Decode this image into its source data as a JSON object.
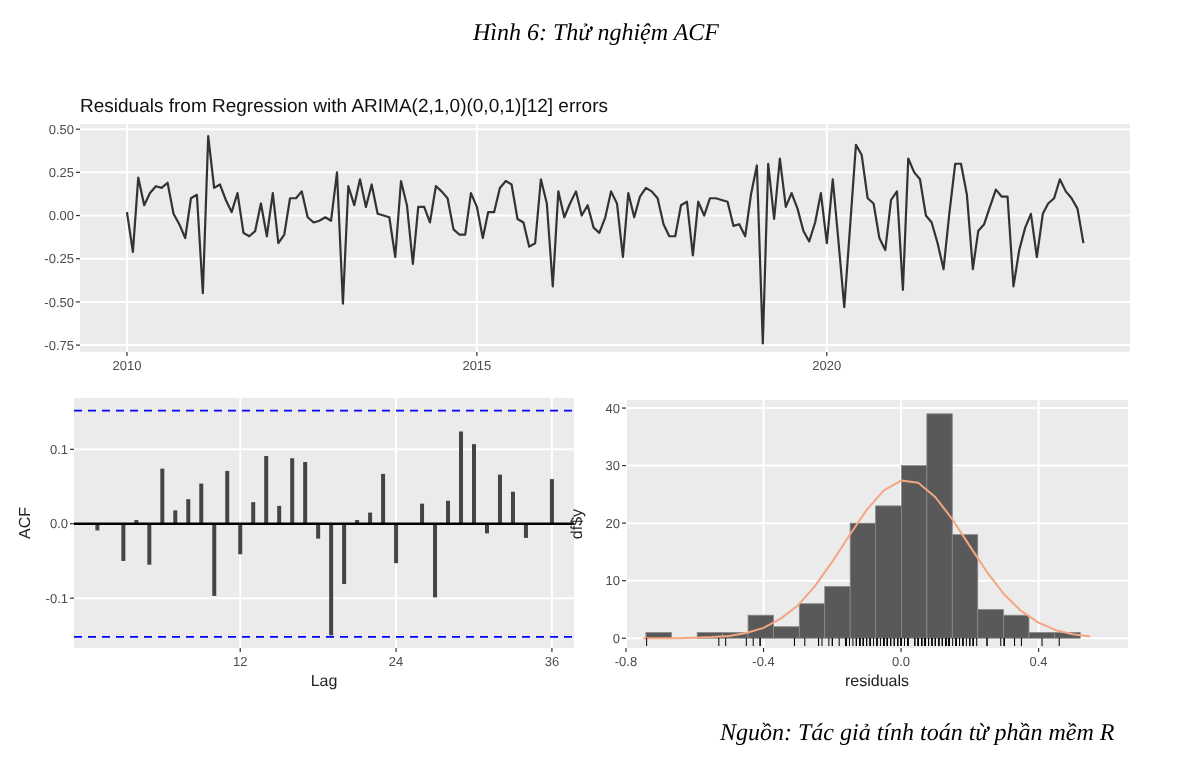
{
  "chart_data": [
    {
      "type": "other",
      "title": "Hình 6: Thử nghiệm ACF",
      "annotations": [
        "Nguồn: Tác giả tính toán từ phần mềm R"
      ]
    },
    {
      "type": "line",
      "title": "Residuals from Regression with ARIMA(2,1,0)(0,0,1)[12] errors",
      "color": "#333333",
      "grid": true,
      "x": [
        "2010-01",
        "2010-02",
        "2010-03",
        "2010-04",
        "2010-05",
        "2010-06",
        "2010-07",
        "2010-08",
        "2010-09",
        "2010-10",
        "2010-11",
        "2010-12",
        "2011-01",
        "2011-02",
        "2011-03",
        "2011-04",
        "2011-05",
        "2011-06",
        "2011-07",
        "2011-08",
        "2011-09",
        "2011-10",
        "2011-11",
        "2011-12",
        "2012-01",
        "2012-02",
        "2012-03",
        "2012-04",
        "2012-05",
        "2012-06",
        "2012-07",
        "2012-08",
        "2012-09",
        "2012-10",
        "2012-11",
        "2012-12",
        "2013-01",
        "2013-02",
        "2013-03",
        "2013-04",
        "2013-05",
        "2013-06",
        "2013-07",
        "2013-08",
        "2013-09",
        "2013-10",
        "2013-11",
        "2013-12",
        "2014-01",
        "2014-02",
        "2014-03",
        "2014-04",
        "2014-05",
        "2014-06",
        "2014-07",
        "2014-08",
        "2014-09",
        "2014-10",
        "2014-11",
        "2014-12",
        "2015-01",
        "2015-02",
        "2015-03",
        "2015-04",
        "2015-05",
        "2015-06",
        "2015-07",
        "2015-08",
        "2015-09",
        "2015-10",
        "2015-11",
        "2015-12",
        "2016-01",
        "2016-02",
        "2016-03",
        "2016-04",
        "2016-05",
        "2016-06",
        "2016-07",
        "2016-08",
        "2016-09",
        "2016-10",
        "2016-11",
        "2016-12",
        "2017-01",
        "2017-02",
        "2017-03",
        "2017-04",
        "2017-05",
        "2017-06",
        "2017-07",
        "2017-08",
        "2017-09",
        "2017-10",
        "2017-11",
        "2017-12",
        "2018-01",
        "2018-02",
        "2018-03",
        "2018-04",
        "2018-05",
        "2018-06",
        "2018-07",
        "2018-08",
        "2018-09",
        "2018-10",
        "2018-11",
        "2018-12",
        "2019-01",
        "2019-02",
        "2019-03",
        "2019-04",
        "2019-05",
        "2019-06",
        "2019-07",
        "2019-08",
        "2019-09",
        "2019-10",
        "2019-11",
        "2019-12",
        "2020-01",
        "2020-02",
        "2020-03",
        "2020-04",
        "2020-05",
        "2020-06",
        "2020-07",
        "2020-08",
        "2020-09",
        "2020-10",
        "2020-11",
        "2020-12",
        "2021-01",
        "2021-02",
        "2021-03",
        "2021-04",
        "2021-05",
        "2021-06",
        "2021-07",
        "2021-08",
        "2021-09",
        "2021-10",
        "2021-11",
        "2021-12",
        "2022-01",
        "2022-02",
        "2022-03",
        "2022-04",
        "2022-05",
        "2022-06",
        "2022-07",
        "2022-08",
        "2022-09",
        "2022-10",
        "2022-11",
        "2022-12",
        "2023-01",
        "2023-02",
        "2023-03",
        "2023-04",
        "2023-05",
        "2023-06",
        "2023-07",
        "2023-08",
        "2023-09"
      ],
      "values": [
        0.02,
        -0.21,
        0.22,
        0.06,
        0.13,
        0.17,
        0.16,
        0.19,
        0.01,
        -0.05,
        -0.13,
        0.1,
        0.12,
        -0.45,
        0.46,
        0.16,
        0.18,
        0.09,
        0.02,
        0.13,
        -0.1,
        -0.12,
        -0.09,
        0.07,
        -0.12,
        0.13,
        -0.16,
        -0.11,
        0.1,
        0.1,
        0.14,
        -0.01,
        -0.04,
        -0.03,
        -0.01,
        -0.03,
        0.25,
        -0.51,
        0.17,
        0.06,
        0.21,
        0.05,
        0.18,
        0.01,
        0.0,
        -0.01,
        -0.24,
        0.2,
        0.06,
        -0.28,
        0.05,
        0.05,
        -0.04,
        0.17,
        0.14,
        0.1,
        -0.08,
        -0.11,
        -0.11,
        0.13,
        0.05,
        -0.13,
        0.02,
        0.02,
        0.16,
        0.2,
        0.18,
        -0.02,
        -0.04,
        -0.18,
        -0.16,
        0.21,
        0.07,
        -0.41,
        0.14,
        -0.01,
        0.07,
        0.14,
        0.0,
        0.06,
        -0.07,
        -0.1,
        -0.01,
        0.14,
        0.07,
        -0.24,
        0.13,
        -0.01,
        0.11,
        0.16,
        0.14,
        0.1,
        -0.05,
        -0.12,
        -0.12,
        0.06,
        0.08,
        -0.23,
        0.08,
        0.0,
        0.1,
        0.1,
        0.09,
        0.08,
        -0.06,
        -0.05,
        -0.12,
        0.12,
        0.29,
        -0.74,
        0.3,
        -0.02,
        0.33,
        0.05,
        0.13,
        0.04,
        -0.09,
        -0.15,
        -0.04,
        0.13,
        -0.16,
        0.21,
        -0.14,
        -0.53,
        -0.07,
        0.41,
        0.35,
        0.1,
        0.07,
        -0.13,
        -0.2,
        0.09,
        0.14,
        -0.43,
        0.33,
        0.25,
        0.21,
        0.0,
        -0.04,
        -0.16,
        -0.31,
        0.01,
        0.3,
        0.3,
        0.12,
        -0.31,
        -0.09,
        -0.05,
        0.05,
        0.15,
        0.11,
        0.11,
        -0.41,
        -0.2,
        -0.07,
        0.01,
        -0.24,
        0.01,
        0.07,
        0.1,
        0.21,
        0.14,
        0.1,
        0.04,
        -0.16
      ],
      "xlim": [
        "2009-05",
        "2024-05"
      ],
      "xticks": [
        "2010",
        "2015",
        "2020"
      ],
      "ylim": [
        -0.79,
        0.53
      ],
      "yticks": [
        {
          "value": -0.75,
          "label": "-0.75"
        },
        {
          "value": -0.5,
          "label": "-0.50"
        },
        {
          "value": -0.25,
          "label": "-0.25"
        },
        {
          "value": 0,
          "label": "0.00"
        },
        {
          "value": 0.25,
          "label": "0.25"
        },
        {
          "value": 0.5,
          "label": "0.50"
        }
      ]
    },
    {
      "type": "bar",
      "xlabel": "Lag",
      "ylabel": "ACF",
      "color": "#444444",
      "grid": true,
      "x": [
        1,
        3,
        4,
        5,
        6,
        7,
        8,
        9,
        10,
        11,
        12,
        13,
        14,
        15,
        16,
        17,
        18,
        19,
        20,
        21,
        22,
        23,
        24,
        26,
        27,
        28,
        29,
        30,
        31,
        32,
        33,
        34,
        36
      ],
      "values": [
        -0.009,
        -0.05,
        0.005,
        -0.055,
        0.074,
        0.018,
        0.033,
        0.054,
        -0.097,
        0.071,
        -0.041,
        0.029,
        0.091,
        0.024,
        0.088,
        0.083,
        -0.02,
        -0.15,
        -0.081,
        0.005,
        0.015,
        0.067,
        -0.053,
        0.027,
        -0.099,
        0.031,
        0.124,
        0.107,
        -0.013,
        0.066,
        0.043,
        -0.019,
        0.06
      ],
      "ref_lines": [
        {
          "axis": "y",
          "value": 0.152,
          "color": "#0000ff",
          "line_style": "dashed"
        },
        {
          "axis": "y",
          "value": -0.152,
          "color": "#0000ff",
          "line_style": "dashed"
        },
        {
          "axis": "y",
          "value": 0,
          "color": "#000000",
          "line_style": "solid"
        }
      ],
      "xlim": [
        -0.8,
        37.7
      ],
      "xticks": [
        12,
        24,
        36
      ],
      "ylim": [
        -0.167,
        0.169
      ],
      "yticks": [
        -0.1,
        {
          "value": 0,
          "label": "0.0"
        },
        0.1
      ]
    },
    {
      "type": "histogram",
      "xlabel": "residuals",
      "ylabel": "df$y",
      "color": "#595959",
      "grid": true,
      "bins": [
        -0.742,
        -0.668,
        -0.593,
        -0.519,
        -0.445,
        -0.371,
        -0.296,
        -0.222,
        -0.148,
        -0.074,
        0.001,
        0.075,
        0.149,
        0.223,
        0.298,
        0.372,
        0.446,
        0.521
      ],
      "values": [
        1,
        0,
        1,
        1,
        4,
        2,
        6,
        9,
        20,
        23,
        30,
        39,
        18,
        5,
        4,
        1,
        1
      ],
      "series": [
        {
          "type": "line",
          "color": "#f4a582",
          "x": [
            -0.75,
            -0.7,
            -0.65,
            -0.6,
            -0.55,
            -0.5,
            -0.45,
            -0.4,
            -0.35,
            -0.3,
            -0.25,
            -0.2,
            -0.15,
            -0.1,
            -0.05,
            0,
            0.05,
            0.1,
            0.15,
            0.2,
            0.25,
            0.3,
            0.35,
            0.4,
            0.45,
            0.5,
            0.55
          ],
          "values": [
            0,
            0,
            0,
            0.1,
            0.2,
            0.4,
            0.9,
            1.8,
            3.4,
            5.7,
            9.1,
            13.3,
            17.9,
            22.3,
            25.7,
            27.4,
            27,
            24.5,
            20.6,
            16,
            11.5,
            7.6,
            4.7,
            2.7,
            1.4,
            0.7,
            0.3
          ]
        }
      ],
      "xlim": [
        -0.8,
        0.66
      ],
      "xticks": [
        -0.8,
        -0.4,
        {
          "value": 0,
          "label": "0.0"
        },
        0.4
      ],
      "ylim": [
        -1.7,
        41.4
      ],
      "yticks": [
        0,
        10,
        20,
        30,
        40
      ]
    }
  ]
}
